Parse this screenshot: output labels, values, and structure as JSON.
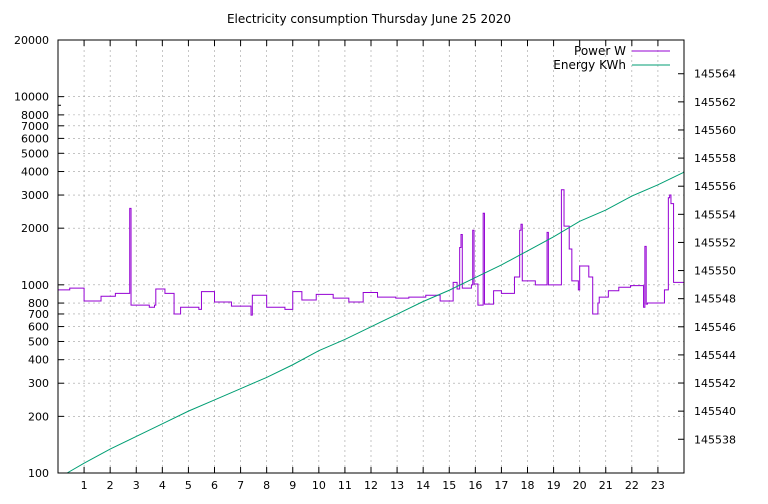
{
  "chart_data": {
    "type": "line",
    "title": "Electricity consumption Thursday June 25 2020",
    "xlabel": "",
    "x_ticks": [
      1,
      2,
      3,
      4,
      5,
      6,
      7,
      8,
      9,
      10,
      11,
      12,
      13,
      14,
      15,
      16,
      17,
      18,
      19,
      20,
      21,
      22,
      23
    ],
    "xlim": [
      0,
      24
    ],
    "y_left": {
      "scale": "log",
      "ylim": [
        100,
        20000
      ],
      "ticks": [
        100,
        200,
        300,
        400,
        500,
        600,
        700,
        800,
        1000,
        2000,
        3000,
        4000,
        5000,
        6000,
        7000,
        8000,
        10000,
        20000
      ],
      "tick_labels": [
        "100",
        "200",
        "300",
        "400",
        "500",
        "600",
        "700",
        "800",
        "1000",
        "2000",
        "3000",
        "4000",
        "5000",
        "6000",
        "7000",
        "8000",
        "10000",
        "20000"
      ]
    },
    "y_right": {
      "scale": "linear",
      "ylim": [
        145535.6,
        145566.4
      ],
      "ticks": [
        145538,
        145540,
        145542,
        145544,
        145546,
        145548,
        145550,
        145552,
        145554,
        145556,
        145558,
        145560,
        145562,
        145564
      ],
      "tick_labels": [
        "145538",
        "145540",
        "145542",
        "145544",
        "145546",
        "145548",
        "145550",
        "145552",
        "145554",
        "145556",
        "145558",
        "145560",
        "145562",
        "145564"
      ]
    },
    "grid": true,
    "legend_position": "top-right",
    "series": [
      {
        "name": "Power W",
        "axis": "left",
        "color": "#9400d3",
        "step": true,
        "points": [
          [
            0,
            940
          ],
          [
            0.45,
            960
          ],
          [
            1.0,
            820
          ],
          [
            1.65,
            870
          ],
          [
            2.2,
            900
          ],
          [
            2.75,
            2550
          ],
          [
            2.8,
            780
          ],
          [
            3.5,
            760
          ],
          [
            3.7,
            780
          ],
          [
            3.75,
            950
          ],
          [
            4.1,
            900
          ],
          [
            4.45,
            700
          ],
          [
            4.7,
            760
          ],
          [
            5.4,
            740
          ],
          [
            5.5,
            920
          ],
          [
            6.0,
            810
          ],
          [
            6.65,
            770
          ],
          [
            7.4,
            690
          ],
          [
            7.45,
            880
          ],
          [
            8.0,
            760
          ],
          [
            8.7,
            740
          ],
          [
            9.0,
            920
          ],
          [
            9.35,
            830
          ],
          [
            9.9,
            890
          ],
          [
            10.55,
            850
          ],
          [
            11.15,
            810
          ],
          [
            11.7,
            910
          ],
          [
            12.25,
            860
          ],
          [
            12.95,
            850
          ],
          [
            13.45,
            860
          ],
          [
            14.1,
            880
          ],
          [
            14.65,
            820
          ],
          [
            15.15,
            1030
          ],
          [
            15.3,
            950
          ],
          [
            15.4,
            1580
          ],
          [
            15.45,
            1850
          ],
          [
            15.5,
            960
          ],
          [
            15.85,
            1000
          ],
          [
            15.9,
            1950
          ],
          [
            15.95,
            1010
          ],
          [
            16.1,
            780
          ],
          [
            16.3,
            2400
          ],
          [
            16.35,
            790
          ],
          [
            16.7,
            930
          ],
          [
            17.0,
            900
          ],
          [
            17.5,
            1100
          ],
          [
            17.7,
            1950
          ],
          [
            17.75,
            2100
          ],
          [
            17.8,
            1050
          ],
          [
            18.3,
            1000
          ],
          [
            18.75,
            1900
          ],
          [
            18.8,
            1000
          ],
          [
            19.3,
            3200
          ],
          [
            19.4,
            2050
          ],
          [
            19.6,
            1550
          ],
          [
            19.7,
            1050
          ],
          [
            19.95,
            940
          ],
          [
            20.0,
            1260
          ],
          [
            20.35,
            1100
          ],
          [
            20.5,
            700
          ],
          [
            20.7,
            800
          ],
          [
            20.75,
            860
          ],
          [
            21.1,
            930
          ],
          [
            21.5,
            970
          ],
          [
            21.95,
            990
          ],
          [
            22.45,
            760
          ],
          [
            22.5,
            1600
          ],
          [
            22.55,
            790
          ],
          [
            22.6,
            800
          ],
          [
            23.25,
            940
          ],
          [
            23.4,
            2900
          ],
          [
            23.45,
            3000
          ],
          [
            23.5,
            2700
          ],
          [
            23.6,
            1030
          ],
          [
            24.0,
            1020
          ]
        ]
      },
      {
        "name": "Energy KWh",
        "axis": "right",
        "color": "#009e73",
        "step": false,
        "points": [
          [
            0.35,
            145535.6
          ],
          [
            1,
            145536.3
          ],
          [
            2,
            145537.3
          ],
          [
            3,
            145538.2
          ],
          [
            4,
            145539.1
          ],
          [
            5,
            145540.0
          ],
          [
            6,
            145540.8
          ],
          [
            7,
            145541.6
          ],
          [
            8,
            145542.4
          ],
          [
            9,
            145543.3
          ],
          [
            10,
            145544.3
          ],
          [
            11,
            145545.1
          ],
          [
            12,
            145546.0
          ],
          [
            13,
            145546.9
          ],
          [
            14,
            145547.8
          ],
          [
            15,
            145548.6
          ],
          [
            16,
            145549.5
          ],
          [
            17,
            145550.4
          ],
          [
            18,
            145551.4
          ],
          [
            19,
            145552.4
          ],
          [
            20,
            145553.5
          ],
          [
            21,
            145554.3
          ],
          [
            22,
            145555.3
          ],
          [
            23,
            145556.1
          ],
          [
            24,
            145557.0
          ]
        ]
      }
    ]
  }
}
